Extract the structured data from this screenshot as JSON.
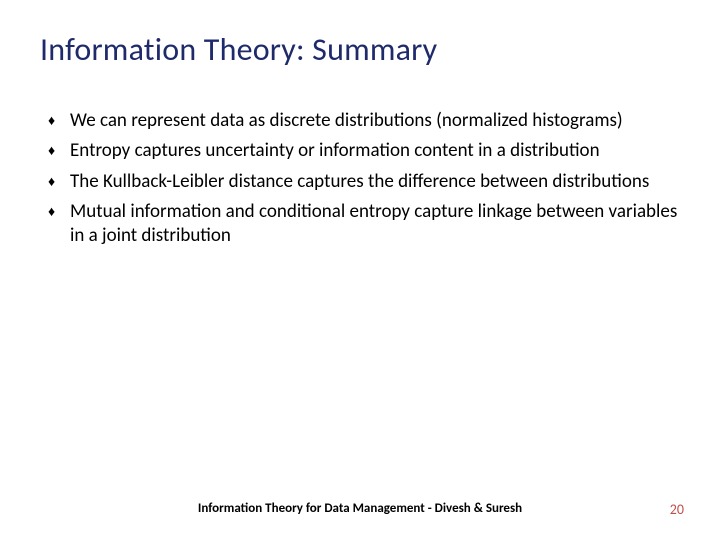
{
  "title": "Information Theory: Summary",
  "title_color": "#1f2a6b",
  "title_fontsize": 32,
  "body_fontsize": 19,
  "bullet_glyph": "♦",
  "bullets": [
    "We can represent data as discrete distributions (normalized histograms)",
    "Entropy captures uncertainty or information content in a distribution",
    "The Kullback-Leibler distance captures the difference between distributions",
    "Mutual information and conditional entropy capture linkage between variables in a joint distribution"
  ],
  "footer": "Information Theory for Data Management - Divesh & Suresh",
  "page_number": "20",
  "page_number_color": "#c0504d",
  "background_color": "#ffffff"
}
